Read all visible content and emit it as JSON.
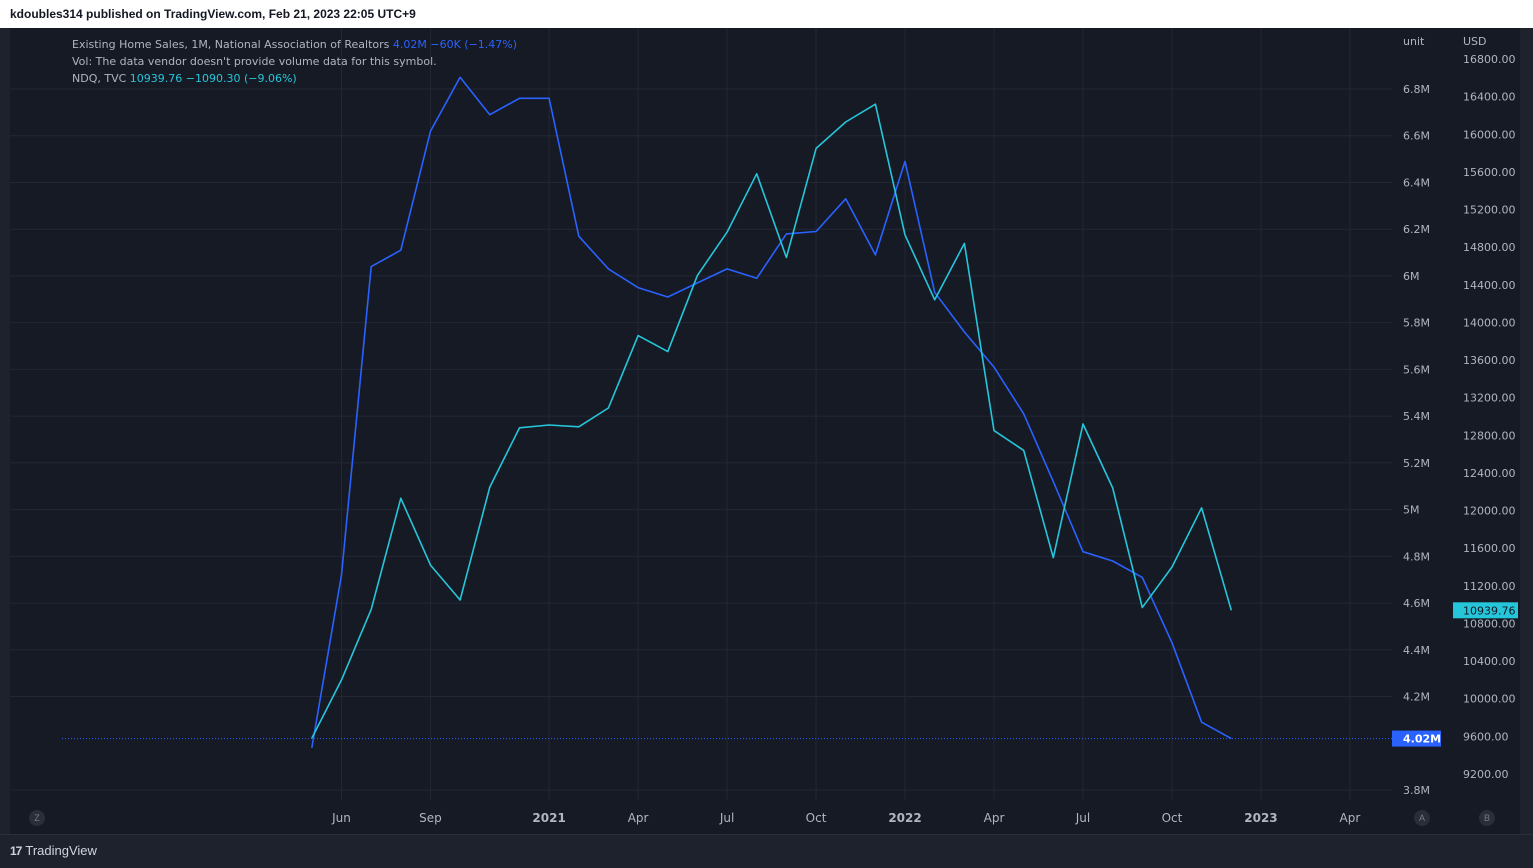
{
  "header": {
    "publish_line": "kdoubles314 published on TradingView.com, Feb 21, 2023 22:05 UTC+9"
  },
  "legend": {
    "series1_name": "Existing Home Sales, 1M, National Association of Realtors",
    "series1_value": "4.02M",
    "series1_change": "−60K (−1.47%)",
    "vol_line": "Vol: The data vendor doesn't provide volume data for this symbol.",
    "series2_name": "NDQ, TVC",
    "series2_value": "10939.76",
    "series2_change": "−1090.30 (−9.06%)"
  },
  "scales": {
    "left_title": "unit",
    "right_title": "USD",
    "last_home_badge": "4.02M",
    "last_ndq_badge": "10939.76"
  },
  "footer": {
    "brand": "TradingView",
    "btn_z": "Z",
    "btn_a": "A",
    "btn_b": "B"
  },
  "colors": {
    "home_sales": "#2962ff",
    "ndq": "#26c6da",
    "background": "#161a25",
    "grid": "#232734"
  },
  "chart_data": {
    "type": "line",
    "x_tick_labels": [
      "Jun",
      "Sep",
      "2021",
      "Apr",
      "Jul",
      "Oct",
      "2022",
      "Apr",
      "Jul",
      "Oct",
      "2023",
      "Apr"
    ],
    "x_tick_months": [
      "2020-06",
      "2020-09",
      "2021-01",
      "2021-04",
      "2021-07",
      "2021-10",
      "2022-01",
      "2022-04",
      "2022-07",
      "2022-10",
      "2023-01",
      "2023-04"
    ],
    "left_axis": {
      "title": "unit",
      "ticks": [
        "3.8M",
        "4.2M",
        "4.4M",
        "4.6M",
        "4.8M",
        "5M",
        "5.2M",
        "5.4M",
        "5.6M",
        "5.8M",
        "6M",
        "6.2M",
        "6.4M",
        "6.6M",
        "6.8M"
      ],
      "tick_values": [
        3.8,
        4.2,
        4.4,
        4.6,
        4.8,
        5.0,
        5.2,
        5.4,
        5.6,
        5.8,
        6.0,
        6.2,
        6.4,
        6.6,
        6.8
      ],
      "range": [
        3.8,
        6.9
      ]
    },
    "right_axis": {
      "title": "USD",
      "ticks": [
        "9200.00",
        "9600.00",
        "10000.00",
        "10400.00",
        "10800.00",
        "11200.00",
        "11600.00",
        "12000.00",
        "12400.00",
        "12800.00",
        "13200.00",
        "13600.00",
        "14000.00",
        "14400.00",
        "14800.00",
        "15200.00",
        "15600.00",
        "16000.00",
        "16400.00",
        "16800.00"
      ],
      "tick_values": [
        9200,
        9600,
        10000,
        10400,
        10800,
        11200,
        11600,
        12000,
        12400,
        12800,
        13200,
        13600,
        14000,
        14400,
        14800,
        15200,
        15600,
        16000,
        16400,
        16800
      ],
      "range": [
        8800,
        16800
      ]
    },
    "series": [
      {
        "name": "Existing Home Sales, 1M, National Association of Realtors",
        "axis": "left",
        "points": [
          [
            "2020-05",
            3.98
          ],
          [
            "2020-06",
            4.72
          ],
          [
            "2020-07",
            6.04
          ],
          [
            "2020-08",
            6.11
          ],
          [
            "2020-09",
            6.62
          ],
          [
            "2020-10",
            6.85
          ],
          [
            "2020-11",
            6.69
          ],
          [
            "2020-12",
            6.76
          ],
          [
            "2021-01",
            6.76
          ],
          [
            "2021-02",
            6.17
          ],
          [
            "2021-03",
            6.03
          ],
          [
            "2021-04",
            5.95
          ],
          [
            "2021-05",
            5.91
          ],
          [
            "2021-06",
            5.97
          ],
          [
            "2021-07",
            6.03
          ],
          [
            "2021-08",
            5.99
          ],
          [
            "2021-09",
            6.18
          ],
          [
            "2021-10",
            6.19
          ],
          [
            "2021-11",
            6.33
          ],
          [
            "2021-12",
            6.09
          ],
          [
            "2022-01",
            6.49
          ],
          [
            "2022-02",
            5.93
          ],
          [
            "2022-03",
            5.76
          ],
          [
            "2022-04",
            5.61
          ],
          [
            "2022-05",
            5.41
          ],
          [
            "2022-06",
            5.12
          ],
          [
            "2022-07",
            4.82
          ],
          [
            "2022-08",
            4.78
          ],
          [
            "2022-09",
            4.71
          ],
          [
            "2022-10",
            4.43
          ],
          [
            "2022-11",
            4.09
          ],
          [
            "2022-12",
            4.02
          ]
        ]
      },
      {
        "name": "NDQ, TVC",
        "axis": "right",
        "points": [
          [
            "2020-05",
            9579
          ],
          [
            "2020-06",
            10200
          ],
          [
            "2020-07",
            10950
          ],
          [
            "2020-08",
            12130
          ],
          [
            "2020-09",
            11420
          ],
          [
            "2020-10",
            11050
          ],
          [
            "2020-11",
            12250
          ],
          [
            "2020-12",
            12880
          ],
          [
            "2021-01",
            12910
          ],
          [
            "2021-02",
            12890
          ],
          [
            "2021-03",
            13090
          ],
          [
            "2021-04",
            13860
          ],
          [
            "2021-05",
            13690
          ],
          [
            "2021-06",
            14500
          ],
          [
            "2021-07",
            14960
          ],
          [
            "2021-08",
            15580
          ],
          [
            "2021-09",
            14690
          ],
          [
            "2021-10",
            15850
          ],
          [
            "2021-11",
            16130
          ],
          [
            "2021-12",
            16320
          ],
          [
            "2022-01",
            14930
          ],
          [
            "2022-02",
            14240
          ],
          [
            "2022-03",
            14840
          ],
          [
            "2022-04",
            12850
          ],
          [
            "2022-05",
            12640
          ],
          [
            "2022-06",
            11500
          ],
          [
            "2022-07",
            12920
          ],
          [
            "2022-08",
            12240
          ],
          [
            "2022-09",
            10970
          ],
          [
            "2022-10",
            11400
          ],
          [
            "2022-11",
            12030
          ],
          [
            "2022-12",
            10940
          ]
        ]
      }
    ],
    "grid": true,
    "legend_position": "top-left"
  }
}
